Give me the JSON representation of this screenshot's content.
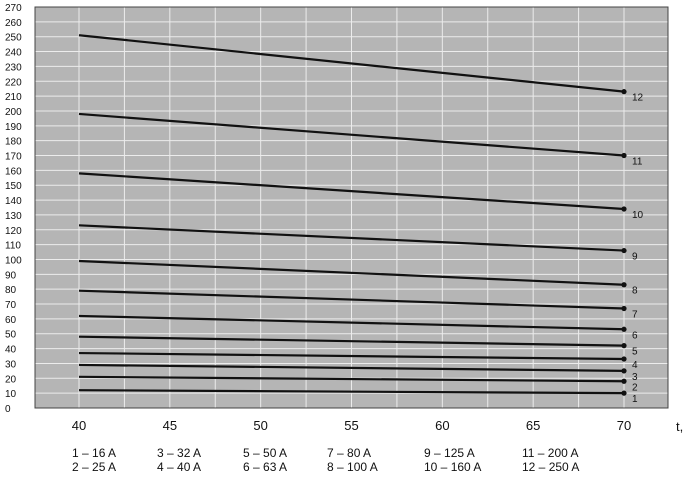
{
  "chart_data": {
    "type": "line",
    "title": "",
    "xlabel": "t,",
    "ylabel": "",
    "xlim": [
      40,
      70
    ],
    "ylim": [
      0,
      270
    ],
    "x_ticks": [
      "40",
      "45",
      "50",
      "55",
      "60",
      "65",
      "70"
    ],
    "y_ticks": [
      "0",
      "10",
      "20",
      "30",
      "40",
      "50",
      "60",
      "70",
      "80",
      "90",
      "100",
      "110",
      "120",
      "130",
      "140",
      "150",
      "160",
      "170",
      "180",
      "190",
      "200",
      "210",
      "220",
      "230",
      "240",
      "250",
      "260",
      "270"
    ],
    "grid": true,
    "colors": {
      "background": "#b5b5b5",
      "grid": "#ececec",
      "line": "#111111"
    },
    "series": [
      {
        "name": "1",
        "x": [
          40,
          70
        ],
        "y": [
          12,
          10
        ]
      },
      {
        "name": "2",
        "x": [
          40,
          70
        ],
        "y": [
          21,
          18
        ]
      },
      {
        "name": "3",
        "x": [
          40,
          70
        ],
        "y": [
          29,
          25
        ]
      },
      {
        "name": "4",
        "x": [
          40,
          70
        ],
        "y": [
          37,
          33
        ]
      },
      {
        "name": "5",
        "x": [
          40,
          70
        ],
        "y": [
          48,
          42
        ]
      },
      {
        "name": "6",
        "x": [
          40,
          70
        ],
        "y": [
          62,
          53
        ]
      },
      {
        "name": "7",
        "x": [
          40,
          70
        ],
        "y": [
          79,
          67
        ]
      },
      {
        "name": "8",
        "x": [
          40,
          70
        ],
        "y": [
          99,
          83
        ]
      },
      {
        "name": "9",
        "x": [
          40,
          70
        ],
        "y": [
          123,
          106
        ]
      },
      {
        "name": "10",
        "x": [
          40,
          70
        ],
        "y": [
          158,
          134
        ]
      },
      {
        "name": "11",
        "x": [
          40,
          70
        ],
        "y": [
          198,
          170
        ]
      },
      {
        "name": "12",
        "x": [
          40,
          70
        ],
        "y": [
          251,
          213
        ]
      }
    ],
    "legend": {
      "columns": [
        [
          "1 – 16 A",
          "2 – 25 A"
        ],
        [
          "3 – 32 A",
          "4 – 40 A"
        ],
        [
          "5 – 50 A",
          "6 – 63 A"
        ],
        [
          "7 – 80 A",
          "8 – 100 A"
        ],
        [
          "9 – 125 A",
          "10 – 160 A"
        ],
        [
          "11 – 200 A",
          "12 – 250 A"
        ]
      ]
    }
  }
}
